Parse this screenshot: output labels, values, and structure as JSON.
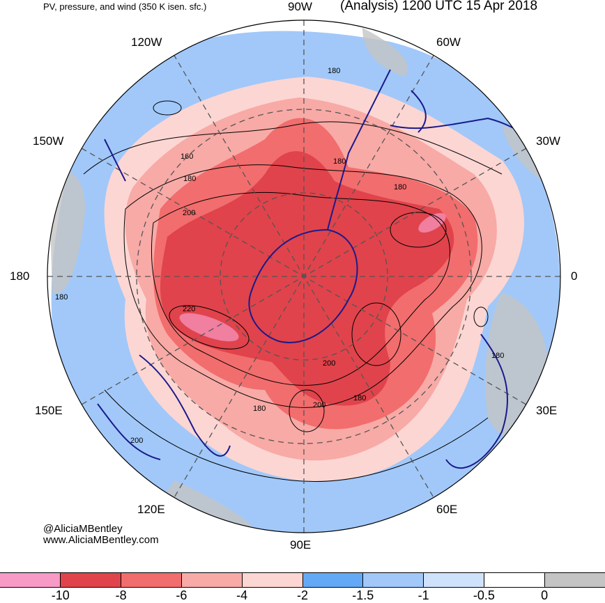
{
  "header": {
    "left_title": "PV, pressure, and wind (350 K isen. sfc.)",
    "right_title": "(Analysis) 1200 UTC 15 Apr 2018"
  },
  "longitude_labels": {
    "top": "90W",
    "top_left": "120W",
    "top_right": "60W",
    "upper_left": "150W",
    "upper_right": "30W",
    "left": "180",
    "right": "0",
    "lower_left": "150E",
    "lower_right": "30E",
    "bottom_left": "120E",
    "bottom_right": "60E",
    "bottom": "90E"
  },
  "contour_labels": [
    "180",
    "160",
    "180",
    "200",
    "180",
    "180",
    "220",
    "200",
    "200",
    "180",
    "180",
    "180",
    "200",
    "180"
  ],
  "credits": {
    "handle": "@AliciaMBentley",
    "website": "www.AliciaMBentley.com"
  },
  "colorbar": {
    "colors": [
      "#f79ac6",
      "#e0434b",
      "#f26d6d",
      "#f8aaa6",
      "#fcd6d3",
      "#63a9f5",
      "#a1c8f9",
      "#cfe2fb",
      "#ffffff",
      "#c4c4c4"
    ],
    "ticks": [
      "-10",
      "-8",
      "-6",
      "-4",
      "-2",
      "-1.5",
      "-1",
      "-0.5",
      "0"
    ]
  },
  "map_colors": {
    "pv_strong": "#e0434b",
    "pv_mid": "#f26d6d",
    "pv_light": "#f8aaa6",
    "pv_faint": "#fcd6d3",
    "blue_light": "#a1c8f9",
    "blue_mid": "#63a9f5",
    "grey": "#c4c4c4",
    "coastline": "#1a1a8c"
  }
}
